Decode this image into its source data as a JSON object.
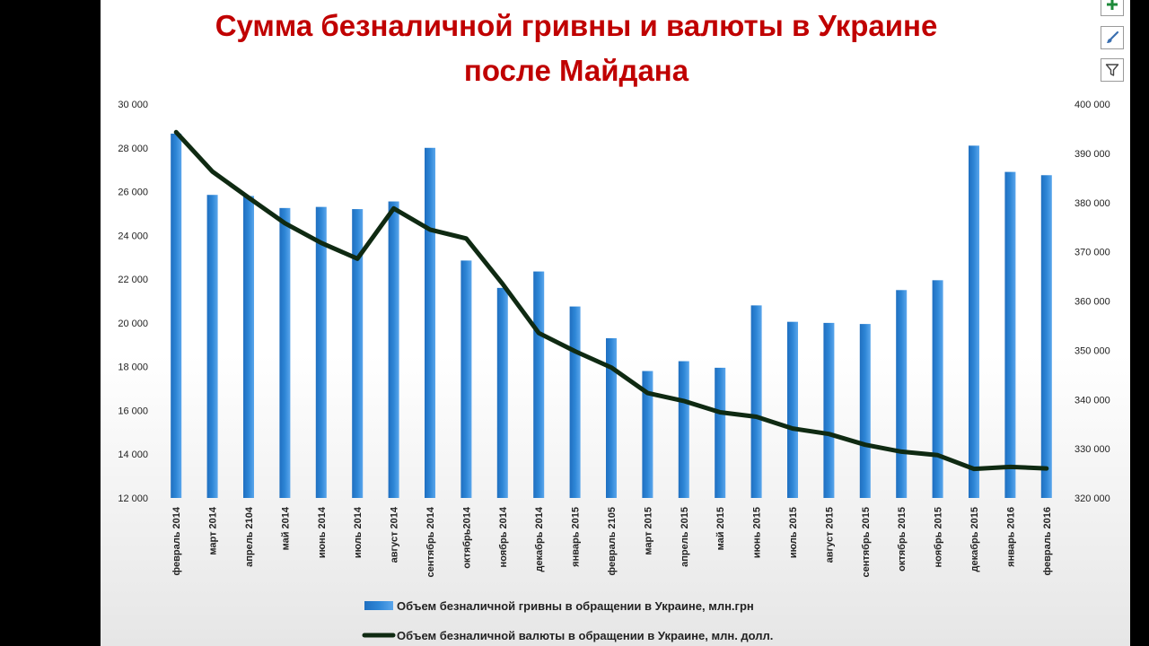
{
  "title_line1": "Сумма безналичной гривны и валюты в Украине",
  "title_line2": "после Майдана",
  "toolbar": {
    "add_icon": "plus-icon",
    "style_icon": "brush-icon",
    "filter_icon": "filter-icon"
  },
  "colors": {
    "bar": "#2e86d6",
    "line": "#0f2a12",
    "title": "#c00000"
  },
  "chart_data": {
    "type": "bar",
    "categories": [
      "февраль 2014",
      "март 2014",
      "апрель 2104",
      "май 2014",
      "июнь 2014",
      "июль 2014",
      "август 2014",
      "сентябрь 2014",
      "октябрь2014",
      "ноябрь 2014",
      "декабрь 2014",
      "январь 2015",
      "февраль 2105",
      "март 2015",
      "апрель 2015",
      "май 2015",
      "июнь 2015",
      "июль 2015",
      "август 2015",
      "сентябрь 2015",
      "октябрь 2015",
      "ноябрь 2015",
      "декабрь 2015",
      "январь 2016",
      "февраль 2016"
    ],
    "series": [
      {
        "name": "Объем безналичной гривны в обращении в Украине, млн.грн",
        "type": "bar",
        "axis": "left",
        "values": [
          28650,
          25850,
          25800,
          25250,
          25300,
          25200,
          25550,
          28000,
          22850,
          21600,
          22350,
          20750,
          19300,
          17800,
          18250,
          17950,
          20800,
          20050,
          20000,
          19950,
          21500,
          21950,
          28100,
          26900,
          26750
        ]
      },
      {
        "name": "Объем безналичной валюты в обращении в Украине, млн. долл.",
        "type": "line",
        "axis": "right",
        "values": [
          394300,
          386300,
          381000,
          375800,
          371800,
          368600,
          378800,
          374500,
          372700,
          363500,
          353500,
          349800,
          346500,
          341300,
          339700,
          337400,
          336500,
          334100,
          333000,
          330800,
          329400,
          328700,
          325900,
          326300,
          326000
        ]
      }
    ],
    "ylim_left": [
      12000,
      30000
    ],
    "ylim_right": [
      320000,
      400000
    ],
    "yticks_left": [
      "12 000",
      "14 000",
      "16 000",
      "18 000",
      "20 000",
      "22 000",
      "24 000",
      "26 000",
      "28 000",
      "30 000"
    ],
    "yticks_right": [
      "320 000",
      "330 000",
      "340 000",
      "350 000",
      "360 000",
      "370 000",
      "380 000",
      "390 000",
      "400 000"
    ],
    "xlabel": "",
    "ylabel": "",
    "grid": false,
    "legend": "bottom"
  }
}
